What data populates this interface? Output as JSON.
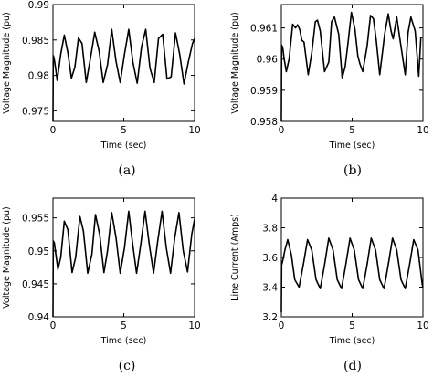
{
  "chart_data": [
    {
      "type": "line",
      "panel": "a",
      "caption": "(a)",
      "xlabel": "Time (sec)",
      "ylabel": "Voltage Magnitude (pu)",
      "xlim": [
        0,
        10
      ],
      "ylim": [
        0.9735,
        0.99
      ],
      "xticks": [
        0,
        5,
        10
      ],
      "yticks": [
        0.975,
        0.98,
        0.985,
        0.99
      ],
      "x_tick_labels": [
        "0",
        "5",
        "10"
      ],
      "y_tick_labels": [
        "0.975",
        "0.98",
        "0.985",
        "0.99"
      ],
      "grid": false,
      "series": [
        {
          "x": [
            0.0,
            0.02,
            0.05,
            0.1,
            0.2,
            0.3,
            0.55,
            0.8,
            1.05,
            1.3,
            1.55,
            1.8,
            2.05,
            2.35,
            2.65,
            2.95,
            3.25,
            3.55,
            3.85,
            4.15,
            4.45,
            4.75,
            5.05,
            5.35,
            5.65,
            5.95,
            6.25,
            6.55,
            6.85,
            7.15,
            7.45,
            7.75,
            8.05,
            8.35,
            8.65,
            8.95,
            9.25,
            9.55,
            9.85,
            10.0
          ],
          "values": [
            0.9735,
            0.9828,
            0.9826,
            0.9822,
            0.9808,
            0.9793,
            0.983,
            0.9857,
            0.9832,
            0.9796,
            0.9812,
            0.9853,
            0.9845,
            0.979,
            0.9825,
            0.9861,
            0.9835,
            0.979,
            0.9815,
            0.9865,
            0.982,
            0.979,
            0.983,
            0.9865,
            0.9818,
            0.9789,
            0.984,
            0.9865,
            0.981,
            0.979,
            0.9852,
            0.9858,
            0.9795,
            0.9798,
            0.986,
            0.983,
            0.9788,
            0.9818,
            0.9845,
            0.9852
          ]
        }
      ]
    },
    {
      "type": "line",
      "panel": "b",
      "caption": "(b)",
      "xlabel": "Time (sec)",
      "ylabel": "Voltage Magnitude (pu)",
      "xlim": [
        0,
        10
      ],
      "ylim": [
        0.958,
        0.96175
      ],
      "xticks": [
        0,
        5,
        10
      ],
      "yticks": [
        0.958,
        0.959,
        0.96,
        0.961
      ],
      "x_tick_labels": [
        "0",
        "5",
        "10"
      ],
      "y_tick_labels": [
        "0.958",
        "0.959",
        "0.96",
        "0.961"
      ],
      "grid": false,
      "series": [
        {
          "x": [
            0.0,
            0.02,
            0.05,
            0.1,
            0.2,
            0.35,
            0.55,
            0.8,
            1.0,
            1.15,
            1.3,
            1.45,
            1.6,
            1.9,
            2.15,
            2.4,
            2.55,
            2.75,
            3.05,
            3.35,
            3.55,
            3.75,
            4.05,
            4.3,
            4.5,
            4.7,
            4.95,
            5.2,
            5.4,
            5.55,
            5.75,
            6.05,
            6.3,
            6.5,
            6.7,
            6.95,
            7.3,
            7.55,
            7.75,
            7.9,
            8.15,
            8.45,
            8.75,
            8.95,
            9.15,
            9.45,
            9.7,
            9.85,
            10.0
          ],
          "values": [
            0.958,
            0.96045,
            0.96042,
            0.96035,
            0.96,
            0.9596,
            0.96,
            0.96112,
            0.961,
            0.9611,
            0.96095,
            0.9606,
            0.96055,
            0.9595,
            0.9602,
            0.9612,
            0.96125,
            0.9609,
            0.9596,
            0.9599,
            0.9612,
            0.96135,
            0.9608,
            0.9594,
            0.95975,
            0.9605,
            0.9615,
            0.96095,
            0.9601,
            0.95985,
            0.9596,
            0.9604,
            0.9614,
            0.9613,
            0.9606,
            0.9595,
            0.9608,
            0.96145,
            0.9609,
            0.96065,
            0.96135,
            0.9604,
            0.9595,
            0.96085,
            0.96135,
            0.9609,
            0.95945,
            0.9607,
            0.9607
          ]
        }
      ]
    },
    {
      "type": "line",
      "panel": "c",
      "caption": "(c)",
      "xlabel": "Time (sec)",
      "ylabel": "Voltage Magnitude (pu)",
      "xlim": [
        0,
        10
      ],
      "ylim": [
        0.94,
        0.958
      ],
      "xticks": [
        0,
        5,
        10
      ],
      "yticks": [
        0.94,
        0.945,
        0.95,
        0.955
      ],
      "x_tick_labels": [
        "0",
        "5",
        "10"
      ],
      "y_tick_labels": [
        "0.94",
        "0.945",
        "0.95",
        "0.955"
      ],
      "grid": false,
      "series": [
        {
          "x": [
            0.0,
            0.02,
            0.05,
            0.1,
            0.2,
            0.35,
            0.55,
            0.8,
            1.05,
            1.35,
            1.6,
            1.9,
            2.15,
            2.45,
            2.75,
            3.0,
            3.3,
            3.6,
            3.85,
            4.15,
            4.45,
            4.75,
            5.05,
            5.35,
            5.6,
            5.9,
            6.2,
            6.5,
            6.8,
            7.1,
            7.4,
            7.7,
            8.0,
            8.3,
            8.6,
            8.9,
            9.2,
            9.5,
            9.8,
            10.0
          ],
          "values": [
            0.94,
            0.9515,
            0.9514,
            0.9512,
            0.9495,
            0.9472,
            0.949,
            0.9545,
            0.9532,
            0.9467,
            0.949,
            0.9552,
            0.953,
            0.9466,
            0.9495,
            0.9555,
            0.9525,
            0.9467,
            0.95,
            0.9558,
            0.952,
            0.9466,
            0.9505,
            0.956,
            0.9515,
            0.9466,
            0.951,
            0.956,
            0.951,
            0.9466,
            0.9515,
            0.956,
            0.9505,
            0.9466,
            0.952,
            0.9558,
            0.95,
            0.9468,
            0.9525,
            0.9548
          ]
        }
      ]
    },
    {
      "type": "line",
      "panel": "d",
      "caption": "(d)",
      "xlabel": "Time (sec)",
      "ylabel": "Line Current (Amps)",
      "xlim": [
        0,
        10
      ],
      "ylim": [
        3.2,
        4.0
      ],
      "xticks": [
        0,
        5,
        10
      ],
      "yticks": [
        3.2,
        3.4,
        3.6,
        3.8,
        4.0
      ],
      "x_tick_labels": [
        "0",
        "5",
        "10"
      ],
      "y_tick_labels": [
        "3.2",
        "3.4",
        "3.6",
        "3.8",
        "4"
      ],
      "grid": false,
      "series": [
        {
          "x": [
            0.0,
            0.02,
            0.05,
            0.1,
            0.25,
            0.45,
            0.7,
            0.95,
            1.25,
            1.55,
            1.85,
            2.15,
            2.45,
            2.75,
            3.05,
            3.35,
            3.65,
            3.95,
            4.25,
            4.55,
            4.85,
            5.15,
            5.45,
            5.75,
            6.05,
            6.35,
            6.65,
            6.95,
            7.25,
            7.55,
            7.85,
            8.15,
            8.45,
            8.75,
            9.05,
            9.35,
            9.65,
            9.95,
            10.0
          ],
          "values": [
            3.23,
            3.55,
            3.56,
            3.58,
            3.65,
            3.72,
            3.62,
            3.45,
            3.4,
            3.55,
            3.72,
            3.65,
            3.45,
            3.39,
            3.55,
            3.73,
            3.65,
            3.45,
            3.39,
            3.55,
            3.73,
            3.65,
            3.45,
            3.39,
            3.55,
            3.73,
            3.65,
            3.45,
            3.39,
            3.55,
            3.73,
            3.65,
            3.45,
            3.39,
            3.55,
            3.72,
            3.65,
            3.42,
            3.4
          ]
        }
      ]
    }
  ]
}
